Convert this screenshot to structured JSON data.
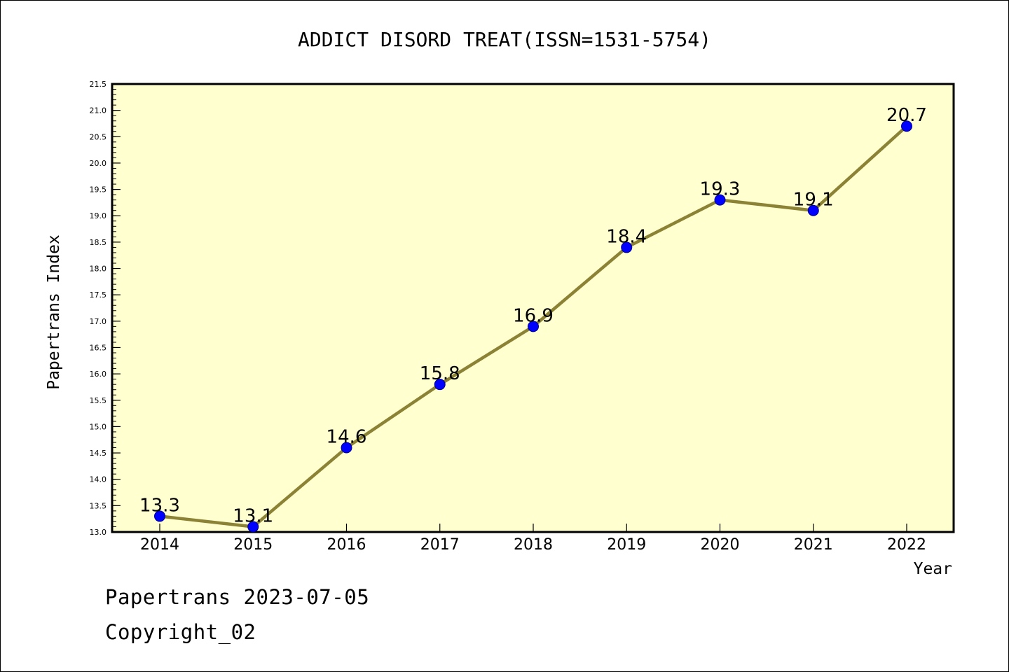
{
  "chart_data": {
    "type": "line",
    "title": "ADDICT DISORD TREAT(ISSN=1531-5754)",
    "xlabel": "Year",
    "ylabel": "Papertrans Index",
    "categories": [
      "2014",
      "2015",
      "2016",
      "2017",
      "2018",
      "2019",
      "2020",
      "2021",
      "2022"
    ],
    "series": [
      {
        "values": [
          13.3,
          13.1,
          14.6,
          15.8,
          16.9,
          18.4,
          19.3,
          19.1,
          20.7
        ]
      }
    ],
    "data_labels": [
      "13.3",
      "13.1",
      "14.6",
      "15.8",
      "16.9",
      "18.4",
      "19.3",
      "19.1",
      "20.7"
    ],
    "ylim": [
      13.0,
      21.5
    ],
    "ytick_step": 0.5,
    "yticks": [
      "13.0",
      "13.5",
      "14.0",
      "14.5",
      "15.0",
      "15.5",
      "16.0",
      "16.5",
      "17.0",
      "17.5",
      "18.0",
      "18.5",
      "19.0",
      "19.5",
      "20.0",
      "20.5",
      "21.0",
      "21.5"
    ],
    "grid": false,
    "legend": "none",
    "colors": {
      "plot_background": "#ffffd0",
      "line": "#8b8235",
      "marker": "#0000ff",
      "axis": "#000000"
    }
  },
  "footer": {
    "line1": "Papertrans 2023-07-05",
    "line2": "Copyright_02"
  }
}
